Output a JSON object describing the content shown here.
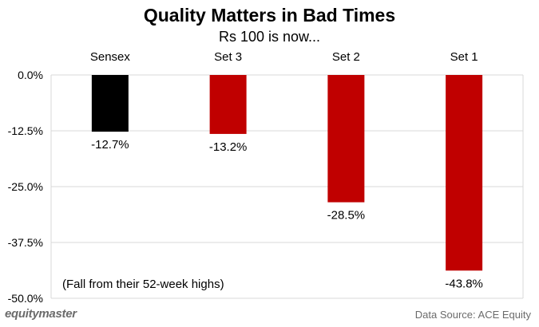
{
  "chart_data": {
    "type": "bar",
    "title": "Quality Matters in Bad Times",
    "subtitle": "Rs 100 is now...",
    "categories": [
      "Sensex",
      "Set 3",
      "Set 2",
      "Set 1"
    ],
    "values": [
      -12.7,
      -13.2,
      -28.5,
      -43.8
    ],
    "data_labels": [
      "-12.7%",
      "-13.2%",
      "-28.5%",
      "-43.8%"
    ],
    "colors": [
      "#000000",
      "#c00000",
      "#c00000",
      "#c00000"
    ],
    "ylim": [
      -50,
      0
    ],
    "yticks": [
      0,
      -12.5,
      -25,
      -37.5,
      -50
    ],
    "ytick_labels": [
      "0.0%",
      "-12.5%",
      "-25.0%",
      "-37.5%",
      "-50.0%"
    ],
    "category_axis_position": "top",
    "grid": true,
    "annotation": "(Fall from their 52-week highs)",
    "xlabel": "",
    "ylabel": ""
  },
  "footer": {
    "brand": "equitymaster",
    "source": "Data Source: ACE Equity"
  }
}
